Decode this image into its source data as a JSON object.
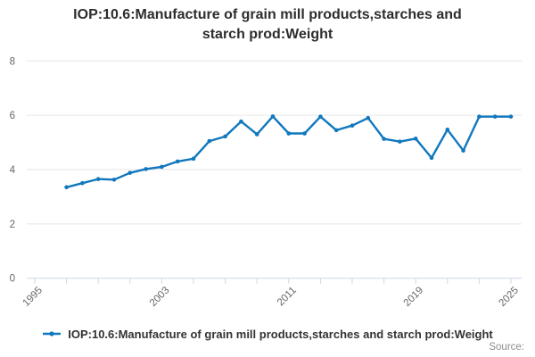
{
  "header": {
    "line1": "IOP:10.6:Manufacture of grain mill products,starches and",
    "line2": "starch prod:Weight"
  },
  "legend": {
    "label": "IOP:10.6:Manufacture of grain mill products,starches and starch prod:Weight"
  },
  "source_label": "Source:",
  "colors": {
    "line": "#1178bd",
    "grid": "#e6e6e6",
    "axis": "#ccd6eb",
    "tick_text": "#666666",
    "title_text": "#2d2d2d"
  },
  "chart_data": {
    "type": "line",
    "title": "IOP:10.6:Manufacture of grain mill products,starches and starch prod:Weight",
    "series_name": "IOP:10.6:Manufacture of grain mill products,starches and starch prod:Weight",
    "x": [
      1997,
      1998,
      1999,
      2000,
      2001,
      2002,
      2003,
      2004,
      2005,
      2006,
      2007,
      2008,
      2009,
      2010,
      2011,
      2012,
      2013,
      2014,
      2015,
      2016,
      2017,
      2018,
      2019,
      2020,
      2021,
      2022,
      2023,
      2024,
      2025
    ],
    "values": [
      3.35,
      3.5,
      3.65,
      3.63,
      3.88,
      4.02,
      4.1,
      4.3,
      4.4,
      5.05,
      5.22,
      5.77,
      5.3,
      5.96,
      5.33,
      5.33,
      5.95,
      5.45,
      5.62,
      5.9,
      5.13,
      5.03,
      5.14,
      4.43,
      5.47,
      4.7,
      5.95,
      5.95,
      5.95
    ],
    "xlabel": "",
    "ylabel": "",
    "ylim": [
      0,
      8
    ],
    "yticks": [
      0,
      2,
      4,
      6,
      8
    ],
    "x_axis_range": [
      1995,
      2025
    ],
    "xtick_step_years": 2,
    "xtick_labels_shown": [
      "1995",
      "2003",
      "2011",
      "2019",
      "2025"
    ],
    "grid": "horizontal",
    "legend_position": "bottom",
    "markers": true
  }
}
